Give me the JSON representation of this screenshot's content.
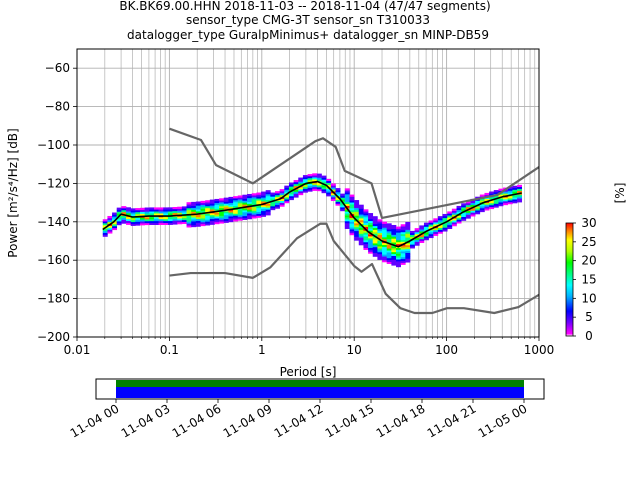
{
  "title": {
    "line1": "BK.BK69.00.HHN   2018-11-03 -- 2018-11-04  (47/47 segments)",
    "line2": "sensor_type CMG-3T sensor_sn T310033",
    "line3": "datalogger_type GuralpMinimus+ datalogger_sn MINP-DB59"
  },
  "chart_data": [
    {
      "type": "heatmap",
      "xlabel": "Period [s]",
      "ylabel": "Power [m²/s⁴/Hz] [dB]",
      "xscale": "log",
      "xlim": [
        0.01,
        1000
      ],
      "ylim": [
        -200,
        -50
      ],
      "x_ticks": [
        {
          "v": 0.01,
          "label": "0.01"
        },
        {
          "v": 0.1,
          "label": "0.1"
        },
        {
          "v": 1,
          "label": "1"
        },
        {
          "v": 10,
          "label": "10"
        },
        {
          "v": 100,
          "label": "100"
        },
        {
          "v": 1000,
          "label": "1000"
        }
      ],
      "y_ticks": [
        {
          "v": -60,
          "label": "−60"
        },
        {
          "v": -80,
          "label": "−80"
        },
        {
          "v": -100,
          "label": "−100"
        },
        {
          "v": -120,
          "label": "−120"
        },
        {
          "v": -140,
          "label": "−140"
        },
        {
          "v": -160,
          "label": "−160"
        },
        {
          "v": -180,
          "label": "−180"
        },
        {
          "v": -200,
          "label": "−200"
        }
      ],
      "grid": true,
      "series": [
        {
          "role": "high-noise-model",
          "color": "#666666",
          "points": [
            [
              0.1,
              -91.5
            ],
            [
              0.22,
              -97.4
            ],
            [
              0.32,
              -110.5
            ],
            [
              0.8,
              -120
            ],
            [
              3.8,
              -98
            ],
            [
              4.6,
              -96.5
            ],
            [
              6.3,
              -101
            ],
            [
              7.9,
              -113.5
            ],
            [
              15.4,
              -120
            ],
            [
              20,
              -138
            ],
            [
              354.8,
              -126
            ],
            [
              1000,
              -111.5
            ]
          ]
        },
        {
          "role": "low-noise-model",
          "color": "#666666",
          "points": [
            [
              0.1,
              -168
            ],
            [
              0.17,
              -166.7
            ],
            [
              0.4,
              -166.7
            ],
            [
              0.8,
              -169.2
            ],
            [
              1.24,
              -163.7
            ],
            [
              2.4,
              -148.6
            ],
            [
              4.3,
              -141
            ],
            [
              5,
              -141
            ],
            [
              6,
              -150
            ],
            [
              10,
              -163
            ],
            [
              12,
              -166
            ],
            [
              15.6,
              -162
            ],
            [
              21.9,
              -177.5
            ],
            [
              31.6,
              -185
            ],
            [
              45,
              -187.5
            ],
            [
              70,
              -187.5
            ],
            [
              101,
              -185
            ],
            [
              154,
              -185
            ],
            [
              328,
              -187.5
            ],
            [
              600,
              -184.4
            ],
            [
              1000,
              -178
            ]
          ]
        },
        {
          "role": "mode",
          "color": "#000000",
          "points": [
            [
              0.019,
              -144
            ],
            [
              0.025,
              -140
            ],
            [
              0.03,
              -136
            ],
            [
              0.04,
              -137.5
            ],
            [
              0.06,
              -137
            ],
            [
              0.1,
              -137
            ],
            [
              0.2,
              -136
            ],
            [
              0.4,
              -134
            ],
            [
              1,
              -131
            ],
            [
              1.6,
              -128
            ],
            [
              2,
              -124.5
            ],
            [
              3,
              -120
            ],
            [
              4,
              -119
            ],
            [
              5,
              -121
            ],
            [
              7,
              -128
            ],
            [
              10,
              -138
            ],
            [
              14,
              -145
            ],
            [
              20,
              -150
            ],
            [
              30,
              -153
            ],
            [
              40,
              -150
            ],
            [
              60,
              -145
            ],
            [
              100,
              -140
            ],
            [
              150,
              -135
            ],
            [
              250,
              -130
            ],
            [
              400,
              -127
            ],
            [
              650,
              -125
            ]
          ]
        }
      ],
      "colorbar": {
        "label": "[%]",
        "min": 0,
        "max": 30,
        "ticks": [
          {
            "v": 0,
            "label": "0"
          },
          {
            "v": 5,
            "label": "5"
          },
          {
            "v": 10,
            "label": "10"
          },
          {
            "v": 15,
            "label": "15"
          },
          {
            "v": 20,
            "label": "20"
          },
          {
            "v": 25,
            "label": "25"
          },
          {
            "v": 30,
            "label": "30"
          }
        ],
        "colors": [
          "#ffffff",
          "#ff00ff",
          "#6000ff",
          "#0000ff",
          "#00b0ff",
          "#00ffff",
          "#00ff80",
          "#00ff00",
          "#b0ff00",
          "#ffff00",
          "#ff8000",
          "#ff0000"
        ]
      }
    },
    {
      "type": "timeline",
      "x_ticks": [
        "11-04 00",
        "11-04 03",
        "11-04 06",
        "11-04 09",
        "11-04 12",
        "11-04 15",
        "11-04 18",
        "11-04 21",
        "11-05 00"
      ],
      "data_coverage": {
        "color": "#0000ff",
        "from": "11-04 00",
        "to": "11-05 00"
      },
      "psd_coverage": {
        "color": "#008000",
        "from": "11-04 00",
        "to": "11-05 00"
      }
    }
  ]
}
